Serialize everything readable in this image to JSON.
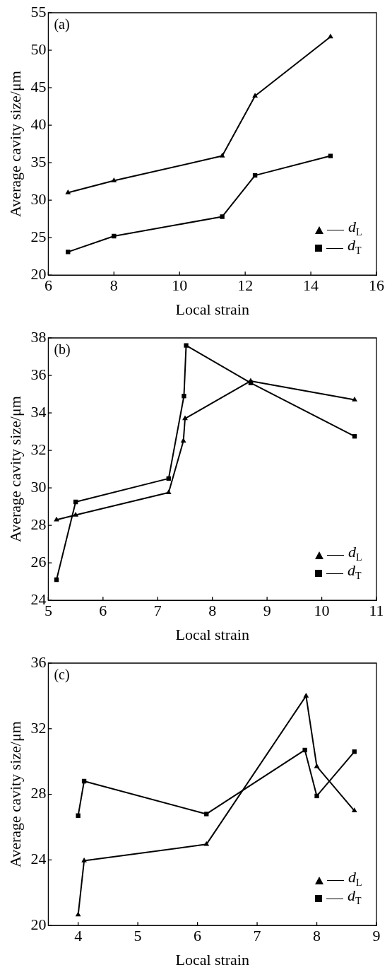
{
  "chart_data": [
    {
      "type": "line",
      "title": "(a)",
      "xlabel": "Local strain",
      "ylabel": "Average cavity size/μm",
      "xlim": [
        6,
        16
      ],
      "xticks": [
        6,
        8,
        10,
        12,
        14,
        16
      ],
      "ylim": [
        20,
        55
      ],
      "yticks": [
        20,
        25,
        30,
        35,
        40,
        45,
        50,
        55
      ],
      "grid": false,
      "legend": "bottom right",
      "line_style": "solid",
      "series": [
        {
          "name": "d$_{L}$",
          "color": "#000000",
          "marker": "triangle",
          "x": [
            6.6,
            8,
            11.3,
            12.3,
            14.6
          ],
          "values": [
            31.0,
            32.6,
            35.9,
            43.9,
            51.8
          ]
        },
        {
          "name": "d$_{T}$",
          "color": "#000000",
          "marker": "square",
          "x": [
            6.6,
            8,
            11.3,
            12.3,
            14.6
          ],
          "values": [
            23.1,
            25.2,
            27.8,
            33.3,
            35.9
          ]
        }
      ]
    },
    {
      "type": "line",
      "title": "(b)",
      "xlabel": "Local strain",
      "ylabel": "Average cavity size/μm",
      "xlim": [
        5,
        11
      ],
      "xticks": [
        5,
        6,
        7,
        8,
        9,
        10,
        11
      ],
      "ylim": [
        24,
        38
      ],
      "yticks": [
        24,
        26,
        28,
        30,
        32,
        34,
        36,
        38
      ],
      "grid": false,
      "legend": "bottom right",
      "line_style": "solid",
      "series": [
        {
          "name": "d$_{L}$",
          "color": "#000000",
          "marker": "triangle",
          "x": [
            5.15,
            5.5,
            7.2,
            7.47,
            7.5,
            8.7,
            10.6
          ],
          "values": [
            28.3,
            28.55,
            29.75,
            32.5,
            33.7,
            35.7,
            34.7
          ]
        },
        {
          "name": "d$_{T}$",
          "color": "#000000",
          "marker": "square",
          "x": [
            5.15,
            5.5,
            7.2,
            7.48,
            7.52,
            8.7,
            10.6
          ],
          "values": [
            25.1,
            29.25,
            30.5,
            34.9,
            37.6,
            35.6,
            32.75
          ]
        }
      ]
    },
    {
      "type": "line",
      "title": "(c)",
      "xlabel": "Local strain",
      "ylabel": "Average cavity size/μm",
      "xlim": [
        3.5,
        9
      ],
      "xticks": [
        4,
        5,
        6,
        7,
        8,
        9
      ],
      "ylim": [
        20,
        36
      ],
      "yticks": [
        20,
        24,
        28,
        32,
        36
      ],
      "grid": false,
      "legend": "bottom right",
      "line_style": "solid",
      "series": [
        {
          "name": "d$_{L}$",
          "color": "#000000",
          "marker": "triangle",
          "x": [
            4.0,
            4.1,
            6.15,
            7.82,
            8.0,
            8.63
          ],
          "values": [
            20.65,
            23.95,
            24.95,
            34.0,
            29.7,
            27.0
          ]
        },
        {
          "name": "d$_{T}$",
          "color": "#000000",
          "marker": "square",
          "x": [
            4.0,
            4.1,
            6.15,
            7.8,
            8.0,
            8.63
          ],
          "values": [
            26.7,
            28.8,
            26.8,
            30.7,
            27.9,
            30.6
          ]
        }
      ]
    }
  ]
}
